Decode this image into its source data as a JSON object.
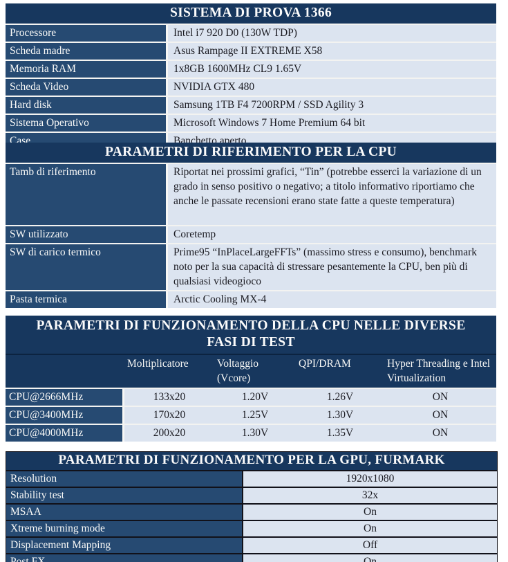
{
  "colors": {
    "header_bg": "#17375E",
    "label_bg": "#264A72",
    "value_bg": "#DCE4F0",
    "grid_dark": "#111119",
    "grid_light": "#F3F3F1",
    "text_light": "#FAFAF8",
    "text_dark": "#1B1B22"
  },
  "system_table": {
    "title": "SISTEMA DI PROVA 1366",
    "rows": [
      {
        "label": "Processore",
        "value": "Intel i7 920 D0 (130W TDP)"
      },
      {
        "label": "Scheda madre",
        "value": "Asus Rampage II EXTREME X58"
      },
      {
        "label": "Memoria RAM",
        "value": "1x8GB 1600MHz CL9 1.65V"
      },
      {
        "label": "Scheda Video",
        "value": "NVIDIA GTX 480"
      },
      {
        "label": "Hard disk",
        "value": "Samsung 1TB F4 7200RPM / SSD Agility 3"
      },
      {
        "label": "Sistema Operativo",
        "value": "Microsoft Windows 7 Home Premium 64 bit"
      },
      {
        "label": "Case",
        "value": "Banchetto aperto"
      }
    ]
  },
  "cpu_reference_table": {
    "title": "PARAMETRI DI RIFERIMENTO PER LA CPU",
    "rows": [
      {
        "label": "Tamb di riferimento",
        "value": "Riportat nei prossimi grafici, “Tin” (potrebbe esserci la variazione di un grado in senso positivo o negativo; a titolo informativo riportiamo che anche le passate recensioni erano state fatte a queste temperatura)"
      },
      {
        "label": "SW utilizzato",
        "value": "Coretemp"
      },
      {
        "label": "SW di carico termico",
        "value": "Prime95 “InPlaceLargeFFTs” (massimo stress e consumo), benchmark noto per la sua capacità di stressare pesantemente la CPU, ben più di qualsiasi videogioco"
      },
      {
        "label": "Pasta termica",
        "value": "Arctic Cooling MX-4"
      }
    ]
  },
  "cpu_operating_table": {
    "title": "PARAMETRI DI FUNZIONAMENTO DELLA CPU NELLE DIVERSE FASI DI TEST",
    "columns": [
      "Moltiplicatore",
      "Voltaggio (Vcore)",
      "QPI/DRAM",
      "Hyper Threading e Intel Virtualization"
    ],
    "rows": [
      {
        "label": "CPU@2666MHz",
        "multiplier": "133x20",
        "vcore": "1.20V",
        "qpi_dram": "1.26V",
        "ht_virt": "ON"
      },
      {
        "label": "CPU@3400MHz",
        "multiplier": "170x20",
        "vcore": "1.25V",
        "qpi_dram": "1.30V",
        "ht_virt": "ON"
      },
      {
        "label": "CPU@4000MHz",
        "multiplier": "200x20",
        "vcore": "1.30V",
        "qpi_dram": "1.35V",
        "ht_virt": "ON"
      }
    ]
  },
  "gpu_furmark_table": {
    "title": "PARAMETRI DI FUNZIONAMENTO PER LA GPU, FURMARK",
    "rows": [
      {
        "label": "Resolution",
        "value": "1920x1080"
      },
      {
        "label": "Stability test",
        "value": "32x"
      },
      {
        "label": "MSAA",
        "value": "On"
      },
      {
        "label": "Xtreme burning mode",
        "value": "On"
      },
      {
        "label": "Displacement Mapping",
        "value": "Off"
      },
      {
        "label": "Post FX",
        "value": "On"
      }
    ]
  }
}
